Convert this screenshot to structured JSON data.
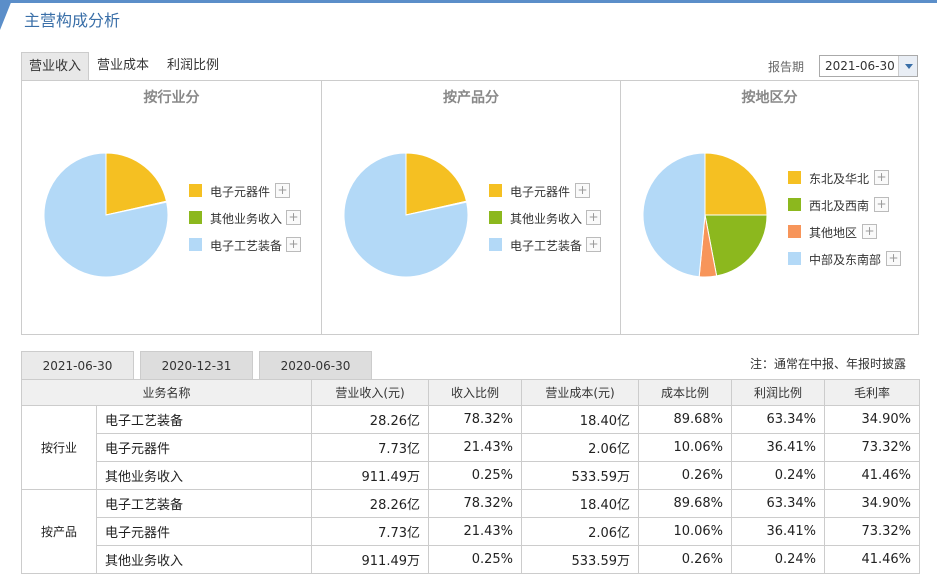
{
  "header": {
    "title": "主营构成分析"
  },
  "tabs": [
    "营业收入",
    "营业成本",
    "利润比例"
  ],
  "period": {
    "label": "报告期",
    "value": "2021-06-30"
  },
  "colors": {
    "yellow": "#f5c022",
    "green": "#8cb81e",
    "blue": "#b3d9f7",
    "orange": "#f7955a",
    "accent": "#3a6fa8"
  },
  "charts": [
    {
      "title": "按行业分",
      "legend": [
        "电子元器件",
        "其他业务收入",
        "电子工艺装备"
      ]
    },
    {
      "title": "按产品分",
      "legend": [
        "电子元器件",
        "其他业务收入",
        "电子工艺装备"
      ]
    },
    {
      "title": "按地区分",
      "legend": [
        "东北及华北",
        "西北及西南",
        "其他地区",
        "中部及东南部"
      ]
    }
  ],
  "chart_data": [
    {
      "type": "pie",
      "title": "按行业分",
      "series": [
        {
          "values": [
            21.43,
            0.25,
            78.32
          ],
          "categories": [
            "电子元器件",
            "其他业务收入",
            "电子工艺装备"
          ]
        }
      ]
    },
    {
      "type": "pie",
      "title": "按产品分",
      "series": [
        {
          "values": [
            21.43,
            0.25,
            78.32
          ],
          "categories": [
            "电子元器件",
            "其他业务收入",
            "电子工艺装备"
          ]
        }
      ]
    },
    {
      "type": "pie",
      "title": "按地区分",
      "series": [
        {
          "values": [
            25,
            22,
            4.5,
            48.5
          ],
          "categories": [
            "东北及华北",
            "西北及西南",
            "其他地区",
            "中部及东南部"
          ]
        }
      ]
    }
  ],
  "date_tabs": [
    "2021-06-30",
    "2020-12-31",
    "2020-06-30"
  ],
  "note": "注：通常在中报、年报时披露",
  "table": {
    "headers": [
      "业务名称",
      "营业收入(元)",
      "收入比例",
      "营业成本(元)",
      "成本比例",
      "利润比例",
      "毛利率"
    ],
    "groups": [
      {
        "name": "按行业",
        "rows": [
          [
            "电子工艺装备",
            "28.26亿",
            "78.32%",
            "18.40亿",
            "89.68%",
            "63.34%",
            "34.90%"
          ],
          [
            "电子元器件",
            "7.73亿",
            "21.43%",
            "2.06亿",
            "10.06%",
            "36.41%",
            "73.32%"
          ],
          [
            "其他业务收入",
            "911.49万",
            "0.25%",
            "533.59万",
            "0.26%",
            "0.24%",
            "41.46%"
          ]
        ]
      },
      {
        "name": "按产品",
        "rows": [
          [
            "电子工艺装备",
            "28.26亿",
            "78.32%",
            "18.40亿",
            "89.68%",
            "63.34%",
            "34.90%"
          ],
          [
            "电子元器件",
            "7.73亿",
            "21.43%",
            "2.06亿",
            "10.06%",
            "36.41%",
            "73.32%"
          ],
          [
            "其他业务收入",
            "911.49万",
            "0.25%",
            "533.59万",
            "0.26%",
            "0.24%",
            "41.46%"
          ]
        ]
      }
    ]
  }
}
